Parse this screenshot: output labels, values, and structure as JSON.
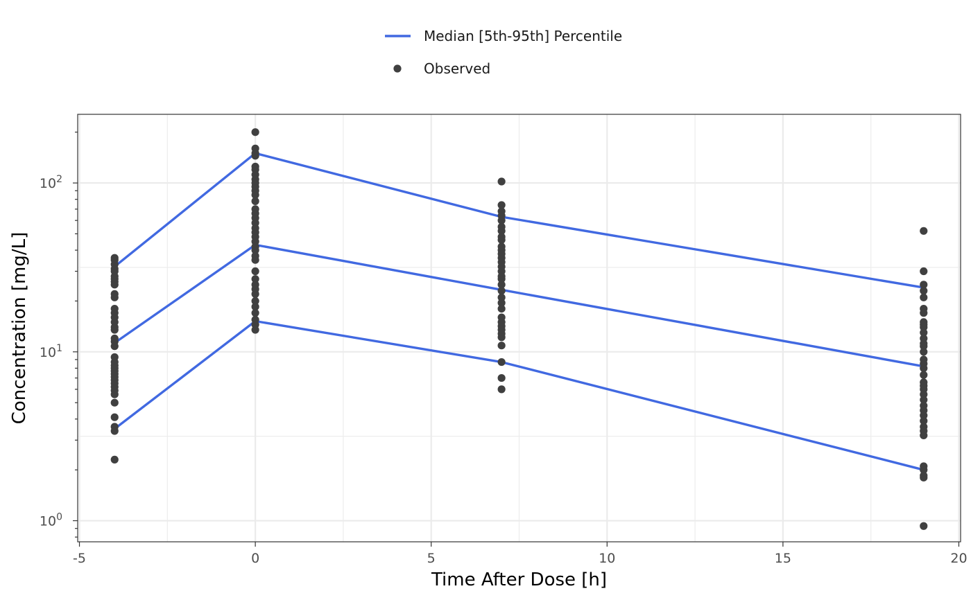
{
  "chart_data": {
    "type": "scatter",
    "xlabel": "Time After Dose [h]",
    "ylabel": "Concentration [mg/L]",
    "xlim": [
      -5.05,
      20.05
    ],
    "ylim": [
      0.75,
      255
    ],
    "y_scale": "log10",
    "grid": true,
    "legend_position": "top",
    "x_ticks": [
      -5,
      0,
      5,
      10,
      15,
      20
    ],
    "x_tick_labels": [
      "-5",
      "0",
      "5",
      "10",
      "15",
      "20"
    ],
    "y_ticks": [
      1,
      10,
      100
    ],
    "y_tick_labels": [
      {
        "base": "10",
        "exp": "0"
      },
      {
        "base": "10",
        "exp": "1"
      },
      {
        "base": "10",
        "exp": "2"
      }
    ],
    "colors": {
      "line": "#4169e1",
      "points": "#404040",
      "grid": "#ebebeb",
      "panel_border": "#333333"
    },
    "legend": [
      {
        "label": "Median [5th-95th] Percentile",
        "kind": "line"
      },
      {
        "label": "Observed",
        "kind": "point"
      }
    ],
    "lines": [
      {
        "name": "95th",
        "x": [
          -4,
          0,
          7,
          19
        ],
        "y": [
          32,
          150,
          63,
          24
        ]
      },
      {
        "name": "median",
        "x": [
          -4,
          0,
          7,
          19
        ],
        "y": [
          11.3,
          43,
          23.3,
          8.2
        ]
      },
      {
        "name": "5th",
        "x": [
          -4,
          0,
          7,
          19
        ],
        "y": [
          3.5,
          15.2,
          8.7,
          2.0
        ]
      }
    ],
    "observed": [
      {
        "x": -4,
        "y": [
          36,
          35,
          33,
          31,
          30,
          28,
          27,
          26,
          25,
          22,
          21,
          18,
          17,
          16,
          15,
          14,
          13.5,
          12,
          11.5,
          10.8,
          9.3,
          8.7,
          8.3,
          8.0,
          7.7,
          7.4,
          7.1,
          6.8,
          6.5,
          6.2,
          5.9,
          5.6,
          5.0,
          4.1,
          3.6,
          3.4,
          2.3
        ]
      },
      {
        "x": 0,
        "y": [
          200,
          160,
          150,
          145,
          125,
          120,
          112,
          105,
          100,
          95,
          90,
          85,
          78,
          70,
          66,
          62,
          58,
          54,
          51,
          48,
          45,
          42,
          40,
          37,
          35,
          30,
          27,
          25,
          23.5,
          22,
          20,
          18.5,
          17,
          15.5,
          14.5,
          13.5
        ]
      },
      {
        "x": 7,
        "y": [
          102,
          74,
          68,
          64,
          60,
          55,
          52,
          48,
          46,
          42,
          40,
          38,
          36,
          34,
          32,
          30,
          28,
          27,
          25,
          23,
          21,
          19.5,
          18,
          16,
          15,
          14.2,
          13.5,
          12.8,
          12.2,
          10.9,
          8.7,
          7.0,
          6.0
        ]
      },
      {
        "x": 19,
        "y": [
          52,
          30,
          25,
          23,
          21,
          18,
          17,
          15,
          14.5,
          14,
          13,
          12,
          11.2,
          10.8,
          10,
          9,
          8.5,
          8,
          7.3,
          6.6,
          6.3,
          6,
          5.6,
          5.2,
          4.8,
          4.5,
          4.2,
          3.9,
          3.6,
          3.4,
          3.2,
          2.1,
          2.0,
          1.85,
          1.8,
          0.93
        ]
      }
    ]
  }
}
